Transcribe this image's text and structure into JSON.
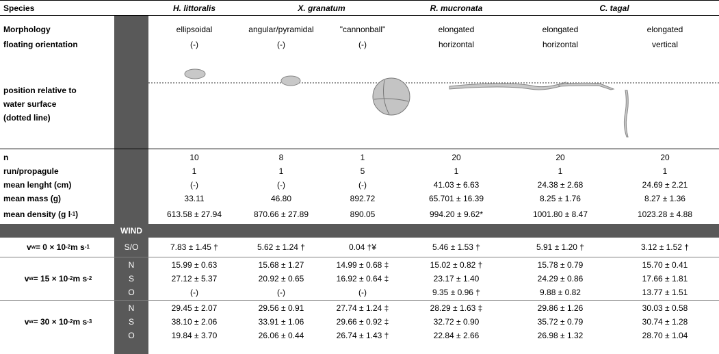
{
  "header": {
    "label": "Species",
    "species": [
      {
        "name": "H. littoralis"
      },
      {
        "name": "X. granatum"
      },
      {
        "name": "R. mucronata"
      },
      {
        "name": "C. tagal"
      }
    ]
  },
  "morphology": {
    "label": "Morphology",
    "values": [
      "ellipsoidal",
      "angular/pyramidal",
      "\"cannonball\"",
      "elongated",
      "elongated",
      "elongated"
    ]
  },
  "orientation": {
    "label": "floating orientation",
    "values": [
      "(-)",
      "(-)",
      "(-)",
      "horizontal",
      "horizontal",
      "vertical"
    ]
  },
  "position": {
    "label_lines": [
      "position relative to",
      "water surface",
      "(dotted line)"
    ]
  },
  "n": {
    "label": "n",
    "values": [
      "10",
      "8",
      "1",
      "20",
      "20",
      "20"
    ]
  },
  "run": {
    "label": "run/propagule",
    "values": [
      "1",
      "1",
      "5",
      "1",
      "1",
      "1"
    ]
  },
  "length": {
    "label": "mean lenght (cm)",
    "values": [
      "(-)",
      "(-)",
      "(-)",
      "41.03 ± 6.63",
      "24.38 ± 2.68",
      "24.69 ± 2.21"
    ]
  },
  "mass": {
    "label": "mean mass (g)",
    "values": [
      "33.11",
      "46.80",
      "892.72",
      "65.701 ± 16.39",
      "8.25 ± 1.76",
      "8.27 ± 1.36"
    ]
  },
  "density": {
    "label_main": "mean density (g l",
    "label_sup": "-1",
    "label_end": ")",
    "values": [
      "613.58 ± 27.94",
      "870.66 ± 27.89",
      "890.05",
      "994.20 ± 9.62*",
      "1001.80 ± 8.47",
      "1023.28 ± 4.88"
    ]
  },
  "wind": {
    "label": "WIND",
    "groups": [
      {
        "label_a": "v",
        "label_sub": "w",
        "label_b": " = 0 × 10",
        "label_sup": "-2",
        "label_c": " m s",
        "label_sup2": "-1",
        "rows": [
          {
            "dir": "S/O",
            "values": [
              "7.83 ± 1.45 †",
              "5.62 ± 1.24 †",
              "0.04 †¥",
              "5.46 ± 1.53 †",
              "5.91 ± 1.20 †",
              "3.12 ± 1.52 †"
            ]
          }
        ]
      },
      {
        "label_a": "v",
        "label_sub": "w",
        "label_b": " = 15 × 10",
        "label_sup": "-2",
        "label_c": " m s",
        "label_sup2": "-2",
        "rows": [
          {
            "dir": "N",
            "values": [
              "15.99 ± 0.63",
              "15.68 ± 1.27",
              "14.99 ± 0.68 ‡",
              "15.02 ± 0.82 †",
              "15.78 ± 0.79",
              "15.70 ± 0.41"
            ]
          },
          {
            "dir": "S",
            "values": [
              "27.12 ± 5.37",
              "20.92 ± 0.65",
              "16.92 ± 0.64 ‡",
              "23.17 ± 1.40",
              "24.29 ± 0.86",
              "17.66 ± 1.81"
            ]
          },
          {
            "dir": "O",
            "values": [
              "(-)",
              "(-)",
              "(-)",
              "9.35 ± 0.96 †",
              "9.88 ± 0.82",
              "13.77 ± 1.51"
            ]
          }
        ]
      },
      {
        "label_a": "v",
        "label_sub": "w",
        "label_b": " = 30 × 10",
        "label_sup": "-2",
        "label_c": " m s",
        "label_sup2": "-3",
        "rows": [
          {
            "dir": "N",
            "values": [
              "29.45 ± 2.07",
              "29.56 ± 0.91",
              "27.74 ± 1.24 ‡",
              "28.29 ± 1.63 ‡",
              "29.86 ± 1.26",
              "30.03 ± 0.58"
            ]
          },
          {
            "dir": "S",
            "values": [
              "38.10 ± 2.06",
              "33.91 ± 1.06",
              "29.66 ± 0.92 ‡",
              "32.72 ± 0.90",
              "35.72 ± 0.79",
              "30.74 ± 1.28"
            ]
          },
          {
            "dir": "O",
            "values": [
              "19.84 ± 3.70",
              "26.06 ± 0.44",
              "26.74 ± 1.43 †",
              "22.84 ± 2.66",
              "26.98 ± 1.32",
              "28.70 ± 1.04"
            ]
          }
        ]
      }
    ]
  },
  "colors": {
    "dark_column": "#595959",
    "wind_band": "#595959",
    "propagule_fill": "#bfbfbf"
  }
}
